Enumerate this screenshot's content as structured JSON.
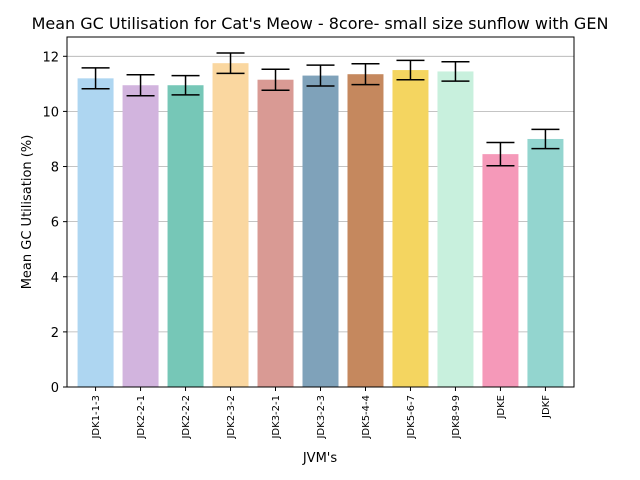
{
  "chart_data": {
    "type": "bar",
    "title": "Mean GC Utilisation for Cat's Meow - 8core- small size sunflow with GEN",
    "xlabel": "JVM's",
    "ylabel": "Mean GC Utilisation (%)",
    "ylim": [
      0,
      12.7
    ],
    "yticks": [
      0,
      2,
      4,
      6,
      8,
      10,
      12
    ],
    "grid": "y",
    "categories": [
      "JDK1-1-3",
      "JDK2-2-1",
      "JDK2-2-2",
      "JDK2-3-2",
      "JDK3-2-1",
      "JDK3-2-3",
      "JDK5-4-4",
      "JDK5-6-7",
      "JDK8-9-9",
      "JDKE",
      "JDKF"
    ],
    "values": [
      11.2,
      10.95,
      10.95,
      11.75,
      11.15,
      11.3,
      11.35,
      11.5,
      11.45,
      8.45,
      9.0
    ],
    "errors": [
      0.38,
      0.38,
      0.35,
      0.37,
      0.38,
      0.38,
      0.38,
      0.35,
      0.35,
      0.42,
      0.35
    ],
    "colors": [
      "#AED6F1",
      "#D2B4DE",
      "#76C7B7",
      "#FAD7A0",
      "#D99A94",
      "#7FA2BA",
      "#C5885E",
      "#F4D560",
      "#C8F0DD",
      "#F599B9",
      "#93D5CF"
    ]
  }
}
